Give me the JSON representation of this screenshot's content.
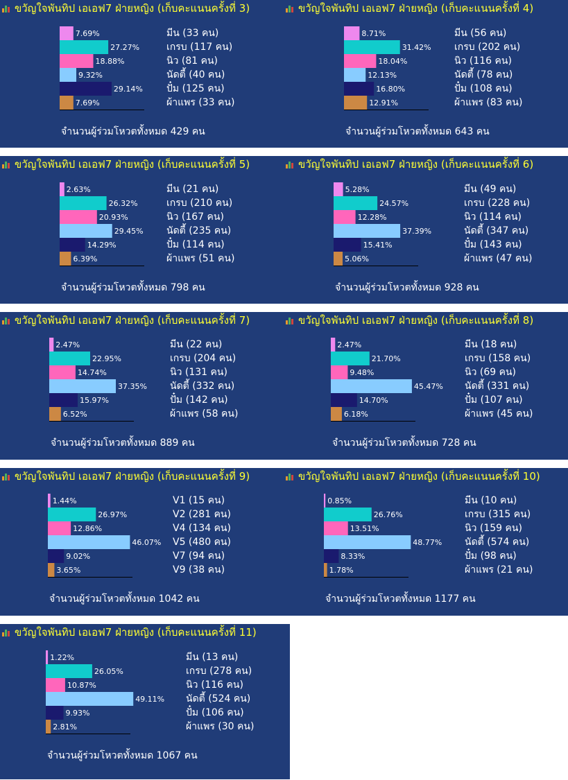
{
  "chart_data": [
    {
      "type": "bar",
      "title": "ขวัญใจพันทิป เอเอฟ7 ฝ่ายหญิง (เก็บคะแนนครั้งที่ 3)",
      "categories": [
        "มีน (33 คน)",
        "เกรบ (117 คน)",
        "นิว (81 คน)",
        "นัดตี้ (40 คน)",
        "ปั๋ม (125 คน)",
        "ผ้าแพร (33 คน)"
      ],
      "values": [
        7.69,
        27.27,
        18.88,
        9.32,
        29.14,
        7.69
      ],
      "labels": [
        "7.69%",
        "27.27%",
        "18.88%",
        "9.32%",
        "29.14%",
        "7.69%"
      ],
      "total": "จำนวนผู้ร่วมโหวตทั้งหมด 429 คน"
    },
    {
      "type": "bar",
      "title": "ขวัญใจพันทิป เอเอฟ7 ฝ่ายหญิง (เก็บคะแนนครั้งที่ 4)",
      "categories": [
        "มีน (56 คน)",
        "เกรบ (202 คน)",
        "นิว (116 คน)",
        "นัดตี้ (78 คน)",
        "ปั๋ม (108 คน)",
        "ผ้าแพร (83 คน)"
      ],
      "values": [
        8.71,
        31.42,
        18.04,
        12.13,
        16.8,
        12.91
      ],
      "labels": [
        "8.71%",
        "31.42%",
        "18.04%",
        "12.13%",
        "16.80%",
        "12.91%"
      ],
      "total": "จำนวนผู้ร่วมโหวตทั้งหมด 643 คน"
    },
    {
      "type": "bar",
      "title": "ขวัญใจพันทิป เอเอฟ7 ฝ่ายหญิง (เก็บคะแนนครั้งที่ 5)",
      "categories": [
        "มีน (21 คน)",
        "เกรบ (210 คน)",
        "นิว (167 คน)",
        "นัดตี้ (235 คน)",
        "ปั๋ม (114 คน)",
        "ผ้าแพร (51 คน)"
      ],
      "values": [
        2.63,
        26.32,
        20.93,
        29.45,
        14.29,
        6.39
      ],
      "labels": [
        "2.63%",
        "26.32%",
        "20.93%",
        "29.45%",
        "14.29%",
        "6.39%"
      ],
      "total": "จำนวนผู้ร่วมโหวตทั้งหมด 798 คน"
    },
    {
      "type": "bar",
      "title": "ขวัญใจพันทิป เอเอฟ7 ฝ่ายหญิง (เก็บคะแนนครั้งที่ 6)",
      "categories": [
        "มีน (49 คน)",
        "เกรบ (228 คน)",
        "นิว (114 คน)",
        "นัดตี้ (347 คน)",
        "ปั๋ม (143 คน)",
        "ผ้าแพร (47 คน)"
      ],
      "values": [
        5.28,
        24.57,
        12.28,
        37.39,
        15.41,
        5.06
      ],
      "labels": [
        "5.28%",
        "24.57%",
        "12.28%",
        "37.39%",
        "15.41%",
        "5.06%"
      ],
      "total": "จำนวนผู้ร่วมโหวตทั้งหมด 928 คน"
    },
    {
      "type": "bar",
      "title": "ขวัญใจพันทิป เอเอฟ7 ฝ่ายหญิง (เก็บคะแนนครั้งที่ 7)",
      "categories": [
        "มีน (22 คน)",
        "เกรบ (204 คน)",
        "นิว (131 คน)",
        "นัดตี้ (332 คน)",
        "ปั๋ม (142 คน)",
        "ผ้าแพร (58 คน)"
      ],
      "values": [
        2.47,
        22.95,
        14.74,
        37.35,
        15.97,
        6.52
      ],
      "labels": [
        "2.47%",
        "22.95%",
        "14.74%",
        "37.35%",
        "15.97%",
        "6.52%"
      ],
      "total": "จำนวนผู้ร่วมโหวตทั้งหมด 889 คน"
    },
    {
      "type": "bar",
      "title": "ขวัญใจพันทิป เอเอฟ7 ฝ่ายหญิง (เก็บคะแนนครั้งที่ 8)",
      "categories": [
        "มีน (18 คน)",
        "เกรบ (158 คน)",
        "นิว (69 คน)",
        "นัดตี้ (331 คน)",
        "ปั๋ม (107 คน)",
        "ผ้าแพร (45 คน)"
      ],
      "values": [
        2.47,
        21.7,
        9.48,
        45.47,
        14.7,
        6.18
      ],
      "labels": [
        "2.47%",
        "21.70%",
        "9.48%",
        "45.47%",
        "14.70%",
        "6.18%"
      ],
      "total": "จำนวนผู้ร่วมโหวตทั้งหมด 728 คน"
    },
    {
      "type": "bar",
      "title": "ขวัญใจพันทิป เอเอฟ7 ฝ่ายหญิง (เก็บคะแนนครั้งที่ 9)",
      "categories": [
        "V1 (15 คน)",
        "V2 (281 คน)",
        "V4 (134 คน)",
        "V5 (480 คน)",
        "V7 (94 คน)",
        "V9 (38 คน)"
      ],
      "values": [
        1.44,
        26.97,
        12.86,
        46.07,
        9.02,
        3.65
      ],
      "labels": [
        "1.44%",
        "26.97%",
        "12.86%",
        "46.07%",
        "9.02%",
        "3.65%"
      ],
      "total": "จำนวนผู้ร่วมโหวตทั้งหมด 1042 คน"
    },
    {
      "type": "bar",
      "title": "ขวัญใจพันทิป เอเอฟ7 ฝ่ายหญิง (เก็บคะแนนครั้งที่ 10)",
      "categories": [
        "มีน (10 คน)",
        "เกรบ (315 คน)",
        "นิว (159 คน)",
        "นัดตี้ (574 คน)",
        "ปั๋ม (98 คน)",
        "ผ้าแพร (21 คน)"
      ],
      "values": [
        0.85,
        26.76,
        13.51,
        48.77,
        8.33,
        1.78
      ],
      "labels": [
        "0.85%",
        "26.76%",
        "13.51%",
        "48.77%",
        "8.33%",
        "1.78%"
      ],
      "total": "จำนวนผู้ร่วมโหวตทั้งหมด 1177 คน"
    },
    {
      "type": "bar",
      "title": "ขวัญใจพันทิป เอเอฟ7 ฝ่ายหญิง (เก็บคะแนนครั้งที่ 11)",
      "categories": [
        "มีน (13 คน)",
        "เกรบ (278 คน)",
        "นิว (116 คน)",
        "นัดตี้ (524 คน)",
        "ปั๋ม (106 คน)",
        "ผ้าแพร (30 คน)"
      ],
      "values": [
        1.22,
        26.05,
        10.87,
        49.11,
        9.93,
        2.81
      ],
      "labels": [
        "1.22%",
        "26.05%",
        "10.87%",
        "49.11%",
        "9.93%",
        "2.81%"
      ],
      "total": "จำนวนผู้ร่วมโหวตทั้งหมด 1067 คน"
    }
  ],
  "colors": {
    "panel_bg": "#203c78",
    "title_text": "#ffff33",
    "bars": [
      "#ee88ee",
      "#11cccc",
      "#ff66bb",
      "#88ccff",
      "#1a1a6e",
      "#cc8844"
    ]
  }
}
